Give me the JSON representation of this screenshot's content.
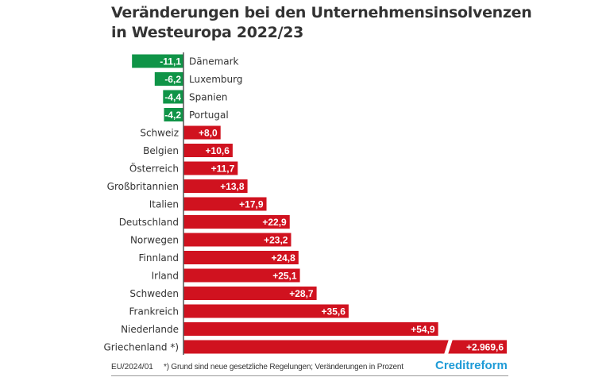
{
  "title": [
    "Veränderungen bei den Unternehmensinsolvenzen",
    "in Westeuropa 2022/23"
  ],
  "chart_data": {
    "type": "bar",
    "orientation": "horizontal",
    "title": "Veränderungen bei den Unternehmensinsolvenzen in Westeuropa 2022/23",
    "categories": [
      "Dänemark",
      "Luxemburg",
      "Spanien",
      "Portugal",
      "Schweiz",
      "Belgien",
      "Österreich",
      "Großbritannien",
      "Italien",
      "Deutschland",
      "Norwegen",
      "Finnland",
      "Irland",
      "Schweden",
      "Frankreich",
      "Niederlande",
      "Griechenland *)"
    ],
    "values": [
      -11.1,
      -6.2,
      -4.4,
      -4.2,
      8.0,
      10.6,
      11.7,
      13.8,
      17.9,
      22.9,
      23.2,
      24.8,
      25.1,
      28.7,
      35.6,
      54.9,
      2969.6
    ],
    "labels": [
      "-11,1",
      "-6,2",
      "-4,4",
      "-4,2",
      "+8,0",
      "+10,6",
      "+11,7",
      "+13,8",
      "+17,9",
      "+22,9",
      "+23,2",
      "+24,8",
      "+25,1",
      "+28,7",
      "+35,6",
      "+54,9",
      "+2.969,6"
    ],
    "unit": "Prozent",
    "broken_bar": "Griechenland *)",
    "colors": {
      "negative": "#0f9447",
      "positive": "#d0121f"
    },
    "grid": false
  },
  "footer": {
    "code": "EU/2024/01",
    "note": "*) Grund sind neue gesetzliche Regelungen; Veränderungen in Prozent",
    "logo": "Creditreform"
  }
}
